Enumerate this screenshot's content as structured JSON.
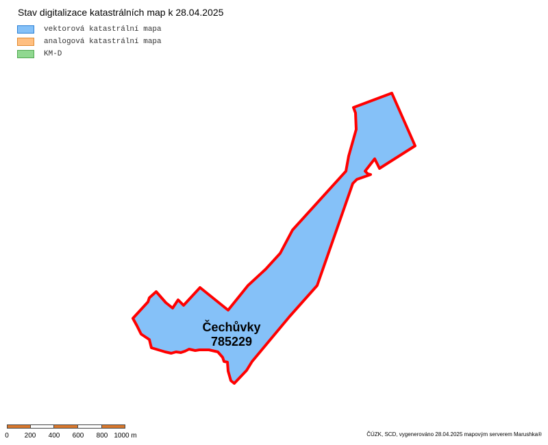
{
  "title": "Stav digitalizace katastrálních map k 28.04.2025",
  "legend": {
    "items": [
      {
        "label": "vektorová katastrální mapa",
        "fill": "#85c1f8",
        "border": "#2a7fd4"
      },
      {
        "label": "analogová katastrální mapa",
        "fill": "#ffbf80",
        "border": "#e08a30"
      },
      {
        "label": "KM-D",
        "fill": "#90d890",
        "border": "#50a850"
      }
    ]
  },
  "parcel": {
    "name": "Čechůvky",
    "code": "785229",
    "fill": "#85c1f8",
    "outline": "#ff0000",
    "status": "vektorová katastrální mapa"
  },
  "scale": {
    "labels": [
      "0",
      "200",
      "400",
      "600",
      "800",
      "1000 m"
    ],
    "colors": [
      "#d9782d",
      "#ffffff"
    ]
  },
  "attribution": "ČÚZK, SCD, vygenerováno 28.04.2025 mapovým serverem Marushka®"
}
